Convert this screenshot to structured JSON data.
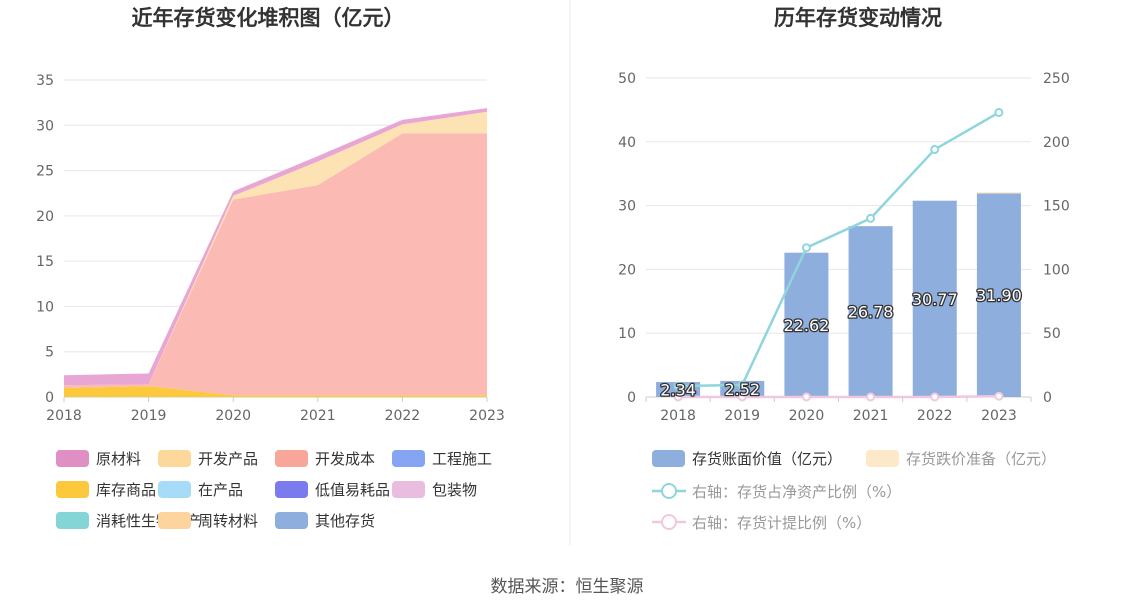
{
  "source": "数据来源：恒生聚源",
  "chart_data": [
    {
      "type": "area",
      "title": "近年存货变化堆积图（亿元）",
      "x": [
        "2018",
        "2019",
        "2020",
        "2021",
        "2022",
        "2023"
      ],
      "ylim": [
        0,
        35
      ],
      "yticks": [
        0,
        5,
        10,
        15,
        20,
        25,
        30,
        35
      ],
      "grid": true,
      "legend_position": "bottom",
      "stacked": true,
      "series": [
        {
          "name": "原材料",
          "color": "#e08fc4",
          "values": [
            0,
            0,
            0,
            0,
            0,
            0
          ]
        },
        {
          "name": "开发产品",
          "color": "#fcd99a",
          "values": [
            0,
            0,
            0,
            0,
            0,
            0
          ]
        },
        {
          "name": "开发成本",
          "color": "#f8a69a",
          "values": [
            0,
            0,
            0,
            0,
            0,
            0
          ]
        },
        {
          "name": "工程施工",
          "color": "#86a4f4",
          "values": [
            0,
            0,
            0,
            0,
            0,
            0
          ]
        },
        {
          "name": "库存商品",
          "color": "#fcc93c",
          "values": [
            1.0,
            1.2,
            0.2,
            0.2,
            0.2,
            0.2
          ]
        },
        {
          "name": "在产品",
          "color": "#a6dcf7",
          "values": [
            0,
            0,
            0,
            0,
            0,
            0
          ]
        },
        {
          "name": "低值易耗品",
          "color": "#7b7bf0",
          "values": [
            0,
            0,
            0,
            0,
            0,
            0
          ]
        },
        {
          "name": "包装物",
          "color": "#e8bde0",
          "values": [
            0,
            0,
            0,
            0,
            0,
            0
          ]
        },
        {
          "name": "消耗性生物资产",
          "color": "#84d6d6",
          "values": [
            0,
            0,
            0,
            0,
            0,
            0
          ]
        },
        {
          "name": "周转材料",
          "color": "#fdd39e",
          "values": [
            0,
            0,
            0,
            0,
            0,
            0
          ]
        },
        {
          "name": "其他存货",
          "color": "#8eaedd",
          "values": [
            0,
            0,
            0,
            0,
            0,
            0
          ]
        }
      ],
      "stack_layers": [
        {
          "name": "库存商品",
          "color": "#fcc93c",
          "values": [
            1.0,
            1.2,
            0.2,
            0.2,
            0.2,
            0.2
          ]
        },
        {
          "name": "开发成本",
          "color": "#fbbab4",
          "values": [
            0.3,
            0.2,
            21.6,
            23.2,
            28.9,
            28.9
          ]
        },
        {
          "name": "开发产品",
          "color": "#fde3b4",
          "values": [
            0,
            0,
            0.4,
            2.6,
            1.0,
            2.4
          ]
        },
        {
          "name": "原材料",
          "color": "#e8a6d4",
          "values": [
            1.1,
            1.2,
            0.5,
            0.6,
            0.5,
            0.4
          ]
        }
      ]
    },
    {
      "type": "bar",
      "title": "历年存货变动情况",
      "categories": [
        "2018",
        "2019",
        "2020",
        "2021",
        "2022",
        "2023"
      ],
      "ylim": [
        0,
        50
      ],
      "yticks": [
        0,
        10,
        20,
        30,
        40,
        50
      ],
      "y2lim": [
        0,
        250
      ],
      "y2ticks": [
        0,
        50,
        100,
        150,
        200,
        250
      ],
      "grid": true,
      "legend_position": "bottom",
      "series": [
        {
          "name": "存货账面价值（亿元）",
          "color": "#8eaedd",
          "values": [
            2.34,
            2.52,
            22.62,
            26.78,
            30.77,
            31.9
          ],
          "labels": [
            "2.34",
            "2.52",
            "22.62",
            "26.78",
            "30.77",
            "31.90"
          ]
        },
        {
          "name": "存货跌价准备（亿元）",
          "color": "#fde8c8",
          "values": [
            0,
            0,
            0,
            0,
            0,
            0.2
          ]
        },
        {
          "name": "右轴：存货占净资产比例（%）",
          "color": "#8ed6dc",
          "axis": "right",
          "type": "line",
          "values": [
            8.5,
            9.5,
            117,
            140,
            194,
            223
          ]
        },
        {
          "name": "右轴：存货计提比例（%）",
          "color": "#f0c8de",
          "axis": "right",
          "type": "line",
          "values": [
            0,
            0,
            0,
            0,
            0,
            0.6
          ]
        }
      ]
    }
  ]
}
